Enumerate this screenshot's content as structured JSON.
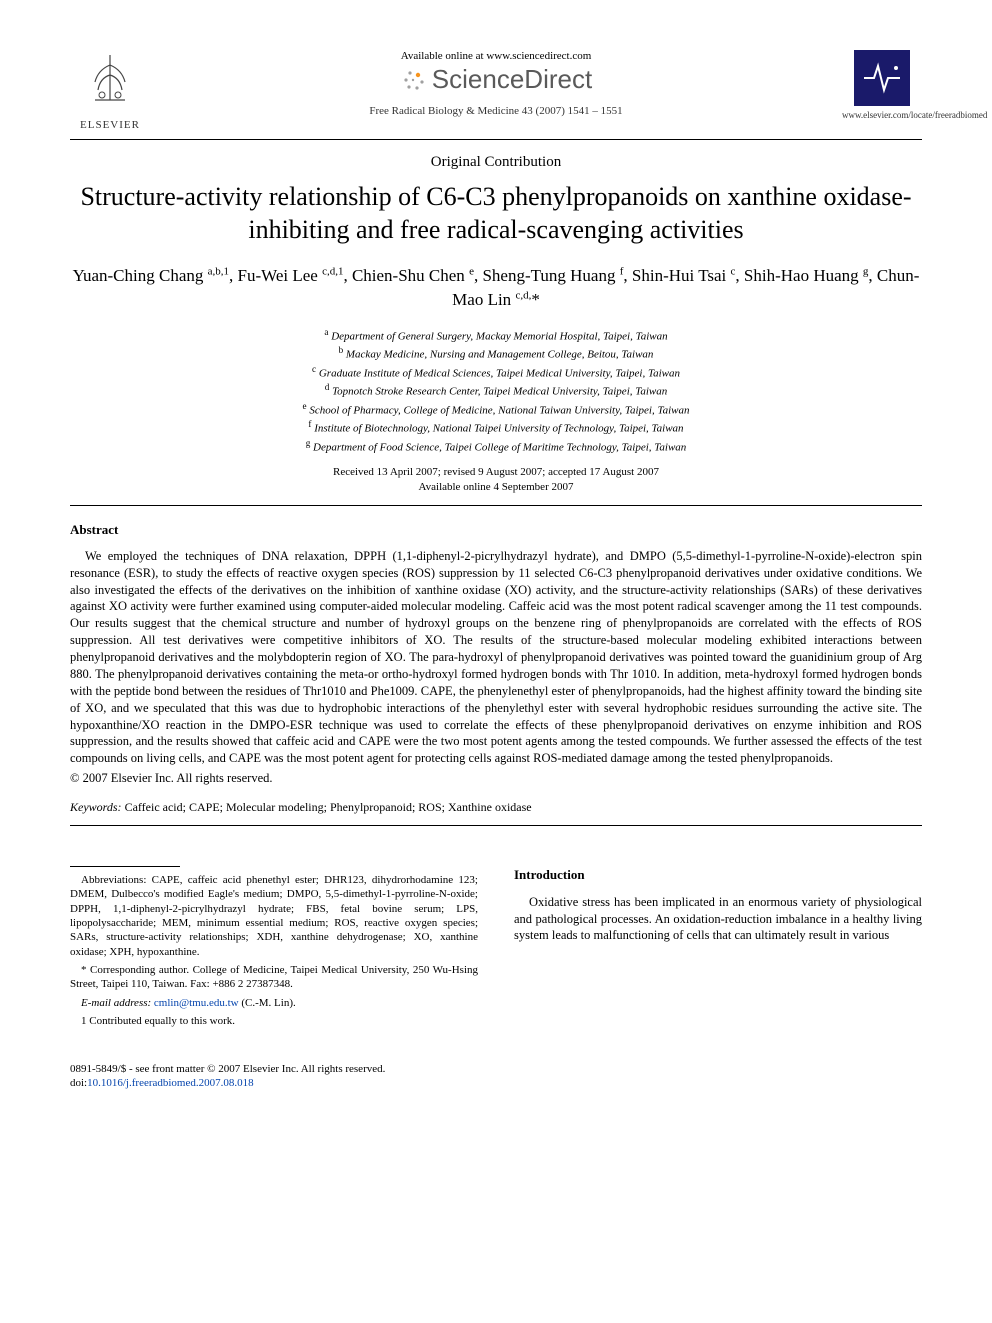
{
  "header": {
    "available_text": "Available online at www.sciencedirect.com",
    "sciencedirect": "ScienceDirect",
    "journal_ref": "Free Radical Biology & Medicine 43 (2007) 1541 – 1551",
    "elsevier_label": "ELSEVIER",
    "journal_url": "www.elsevier.com/locate/freeradbiomed"
  },
  "article": {
    "type": "Original Contribution",
    "title": "Structure-activity relationship of C6-C3 phenylpropanoids on xanthine oxidase-inhibiting and free radical-scavenging activities",
    "authors_html": "Yuan-Ching Chang <sup>a,b,1</sup>, Fu-Wei Lee <sup>c,d,1</sup>, Chien-Shu Chen <sup>e</sup>, Sheng-Tung Huang <sup>f</sup>, Shin-Hui Tsai <sup>c</sup>, Shih-Hao Huang <sup>g</sup>, Chun-Mao Lin <sup>c,d,</sup>*",
    "affiliations": [
      "a Department of General Surgery, Mackay Memorial Hospital, Taipei, Taiwan",
      "b Mackay Medicine, Nursing and Management College, Beitou, Taiwan",
      "c Graduate Institute of Medical Sciences, Taipei Medical University, Taipei, Taiwan",
      "d Topnotch Stroke Research Center, Taipei Medical University, Taipei, Taiwan",
      "e School of Pharmacy, College of Medicine, National Taiwan University, Taipei, Taiwan",
      "f Institute of Biotechnology, National Taipei University of Technology, Taipei, Taiwan",
      "g Department of Food Science, Taipei College of Maritime Technology, Taipei, Taiwan"
    ],
    "received": "Received 13 April 2007; revised 9 August 2007; accepted 17 August 2007",
    "online": "Available online 4 September 2007"
  },
  "abstract": {
    "heading": "Abstract",
    "body": "We employed the techniques of DNA relaxation, DPPH (1,1-diphenyl-2-picrylhydrazyl hydrate), and DMPO (5,5-dimethyl-1-pyrroline-N-oxide)-electron spin resonance (ESR), to study the effects of reactive oxygen species (ROS) suppression by 11 selected C6-C3 phenylpropanoid derivatives under oxidative conditions. We also investigated the effects of the derivatives on the inhibition of xanthine oxidase (XO) activity, and the structure-activity relationships (SARs) of these derivatives against XO activity were further examined using computer-aided molecular modeling. Caffeic acid was the most potent radical scavenger among the 11 test compounds. Our results suggest that the chemical structure and number of hydroxyl groups on the benzene ring of phenylpropanoids are correlated with the effects of ROS suppression. All test derivatives were competitive inhibitors of XO. The results of the structure-based molecular modeling exhibited interactions between phenylpropanoid derivatives and the molybdopterin region of XO. The para-hydroxyl of phenylpropanoid derivatives was pointed toward the guanidinium group of Arg 880. The phenylpropanoid derivatives containing the meta-or ortho-hydroxyl formed hydrogen bonds with Thr 1010. In addition, meta-hydroxyl formed hydrogen bonds with the peptide bond between the residues of Thr1010 and Phe1009. CAPE, the phenylenethyl ester of phenylpropanoids, had the highest affinity toward the binding site of XO, and we speculated that this was due to hydrophobic interactions of the phenylethyl ester with several hydrophobic residues surrounding the active site. The hypoxanthine/XO reaction in the DMPO-ESR technique was used to correlate the effects of these phenylpropanoid derivatives on enzyme inhibition and ROS suppression, and the results showed that caffeic acid and CAPE were the two most potent agents among the tested compounds. We further assessed the effects of the test compounds on living cells, and CAPE was the most potent agent for protecting cells against ROS-mediated damage among the tested phenylpropanoids.",
    "copyright": "© 2007 Elsevier Inc. All rights reserved."
  },
  "keywords": {
    "label": "Keywords:",
    "text": "Caffeic acid; CAPE; Molecular modeling; Phenylpropanoid; ROS; Xanthine oxidase"
  },
  "footnotes": {
    "abbrev": "Abbreviations: CAPE, caffeic acid phenethyl ester; DHR123, dihydrorhodamine 123; DMEM, Dulbecco's modified Eagle's medium; DMPO, 5,5-dimethyl-1-pyrroline-N-oxide; DPPH, 1,1-diphenyl-2-picrylhydrazyl hydrate; FBS, fetal bovine serum; LPS, lipopolysaccharide; MEM, minimum essential medium; ROS, reactive oxygen species; SARs, structure-activity relationships; XDH, xanthine dehydrogenase; XO, xanthine oxidase; XPH, hypoxanthine.",
    "corresponding": "* Corresponding author. College of Medicine, Taipei Medical University, 250 Wu-Hsing Street, Taipei 110, Taiwan. Fax: +886 2 27387348.",
    "email_label": "E-mail address:",
    "email": "cmlin@tmu.edu.tw",
    "email_suffix": "(C.-M. Lin).",
    "contrib": "1 Contributed equally to this work."
  },
  "intro": {
    "heading": "Introduction",
    "para": "Oxidative stress has been implicated in an enormous variety of physiological and pathological processes. An oxidation-reduction imbalance in a healthy living system leads to malfunctioning of cells that can ultimately result in various"
  },
  "bottom": {
    "issn_line": "0891-5849/$ - see front matter © 2007 Elsevier Inc. All rights reserved.",
    "doi_label": "doi:",
    "doi": "10.1016/j.freeradbiomed.2007.08.018"
  },
  "colors": {
    "text": "#000000",
    "link": "#0645ad",
    "logo_bg": "#1a1a6a",
    "sd_gray": "#5a5a5a",
    "sd_orange": "#f7941d"
  }
}
